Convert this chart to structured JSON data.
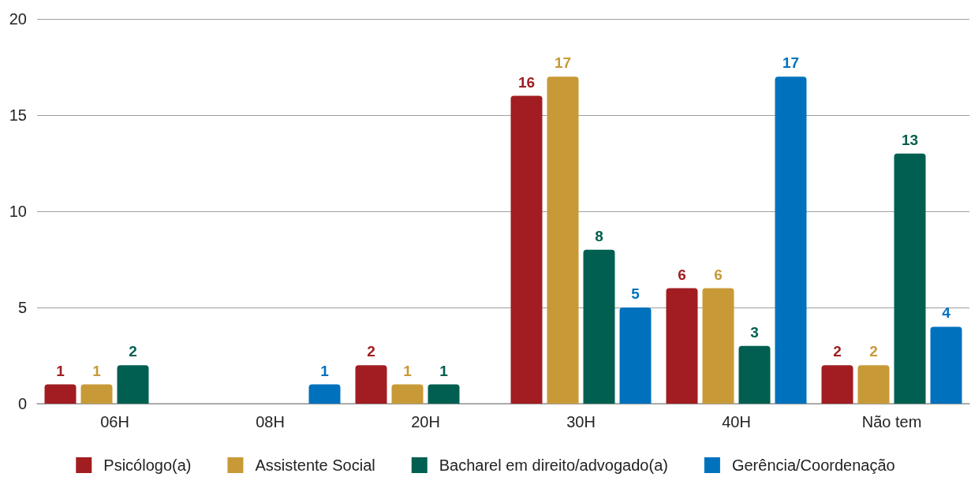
{
  "chart_data": {
    "type": "bar",
    "categories": [
      "06H",
      "08H",
      "20H",
      "30H",
      "40H",
      "Não tem"
    ],
    "series": [
      {
        "name": "Psicólogo(a)",
        "color": "#a11d21",
        "values": [
          1,
          null,
          2,
          16,
          6,
          2
        ]
      },
      {
        "name": "Assistente Social",
        "color": "#c89a37",
        "values": [
          1,
          null,
          1,
          17,
          6,
          2
        ]
      },
      {
        "name": "Bacharel em direito/advogado(a)",
        "color": "#005f50",
        "values": [
          2,
          null,
          1,
          8,
          3,
          13
        ]
      },
      {
        "name": "Gerência/Coordenação",
        "color": "#0072bd",
        "values": [
          null,
          1,
          null,
          5,
          17,
          4
        ]
      }
    ],
    "ylim": [
      0,
      20
    ],
    "yticks": [
      0,
      5,
      10,
      15,
      20
    ],
    "grid": true,
    "legend": "bottom",
    "data_labels": true
  }
}
